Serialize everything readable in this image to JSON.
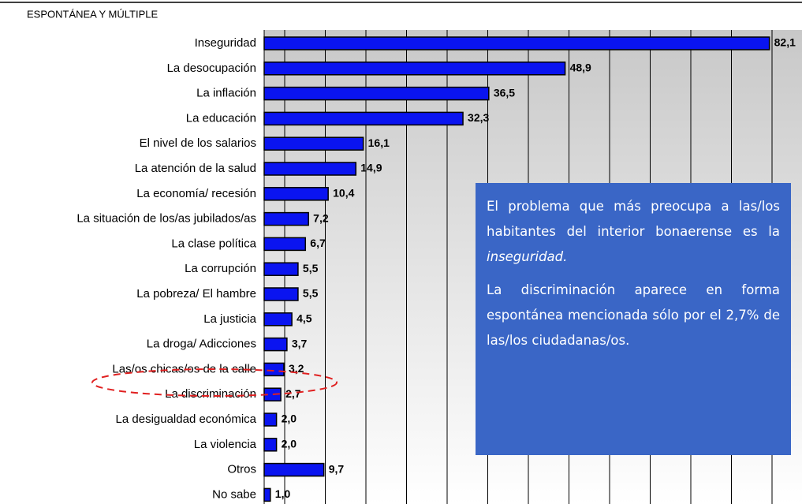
{
  "chart_data": {
    "type": "bar",
    "orientation": "horizontal",
    "title": "ESPONTÁNEA Y MÚLTIPLE",
    "categories": [
      "Inseguridad",
      "La desocupación",
      "La inflación",
      "La educación",
      "El nivel de los salarios",
      "La atención de la salud",
      "La economía/ recesión",
      "La situación de los/as jubilados/as",
      "La clase política",
      "La corrupción",
      "La pobreza/ El hambre",
      "La justicia",
      "La droga/ Adicciones",
      "Las/os chicas/os de la calle",
      "La discriminación",
      "La desigualdad económica",
      "La violencia",
      "Otros",
      "No sabe"
    ],
    "values": [
      82.1,
      48.9,
      36.5,
      32.3,
      16.1,
      14.9,
      10.4,
      7.2,
      6.7,
      5.5,
      5.5,
      4.5,
      3.7,
      3.2,
      2.7,
      2.0,
      2.0,
      9.7,
      1.0
    ],
    "value_labels": [
      "82,1",
      "48,9",
      "36,5",
      "32,3",
      "16,1",
      "14,9",
      "10,4",
      "7,2",
      "6,7",
      "5,5",
      "5,5",
      "4,5",
      "3,7",
      "3,2",
      "2,7",
      "2,0",
      "2,0",
      "9,7",
      "1,0"
    ],
    "color": "#0a14f0",
    "xlim": [
      0,
      87.4
    ],
    "grid": true,
    "annotation": {
      "paragraph1": "El problema que más preocupa a las/los habitantes del interior bonaerense es la",
      "emphasis": "inseguridad.",
      "paragraph2": "La discriminación aparece en forma espontánea mencionada sólo por el 2,7% de las/los ciudadanas/os."
    }
  }
}
